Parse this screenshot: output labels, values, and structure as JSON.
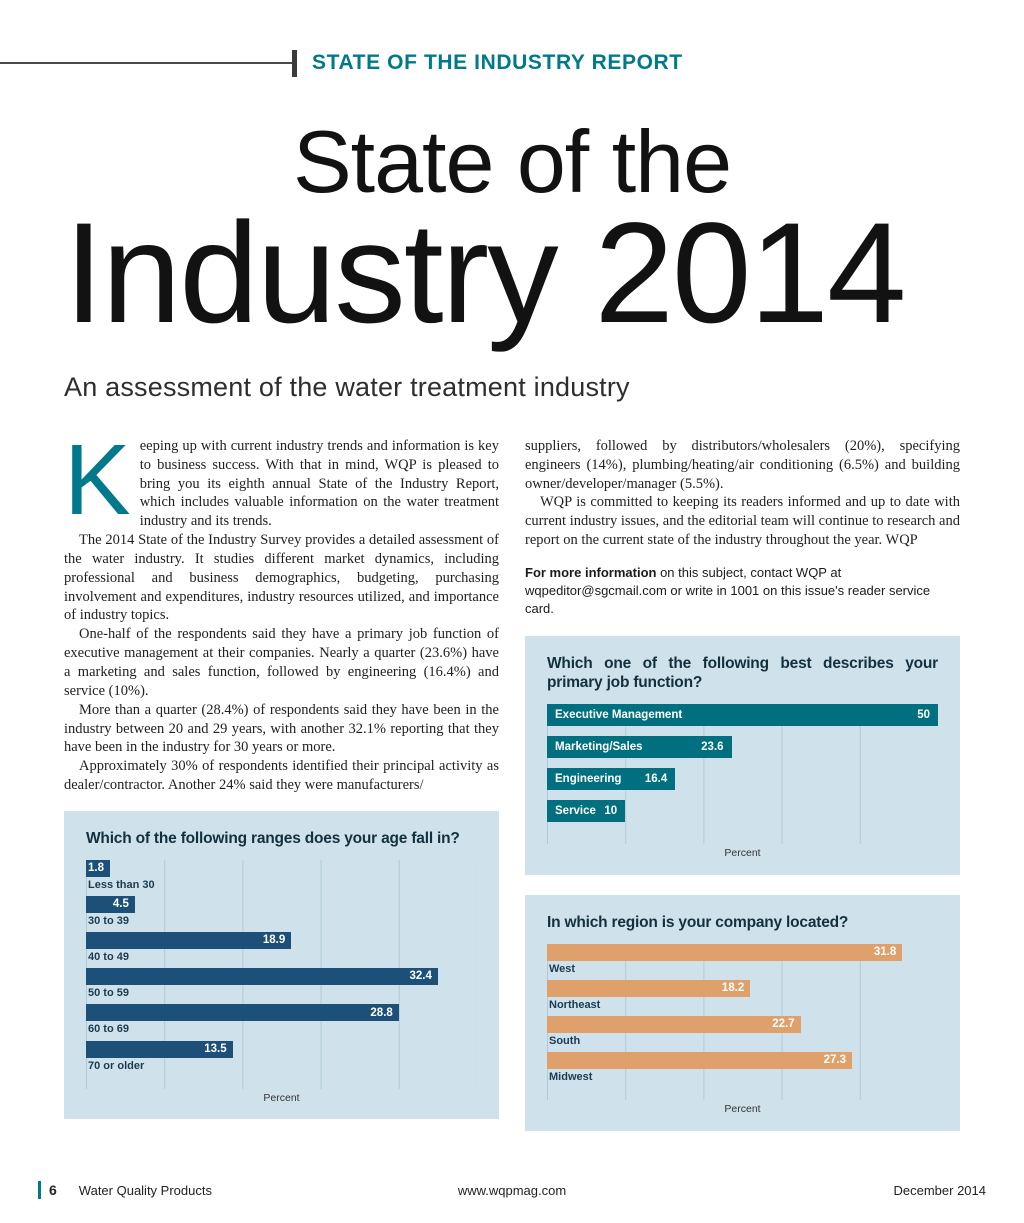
{
  "header": {
    "kicker": "STATE OF THE INDUSTRY REPORT"
  },
  "title": {
    "line1": "State of the",
    "line2": "Industry 2014",
    "subtitle": "An assessment of the water treatment industry"
  },
  "article": {
    "dropcap": "K",
    "left_paragraphs": [
      "eeping up with current industry trends and information is key to business success. With that in mind, WQP is pleased to bring you its eighth annual State of the Industry Report, which includes valuable information on the water treatment industry and its trends.",
      "The 2014 State of the Industry Survey provides a detailed assessment of the water industry. It studies different market dynamics, including professional and business demographics, budgeting, purchasing involvement and expenditures, industry resources utilized, and importance of industry topics.",
      "One-half of the respondents said they have a primary job function of executive management at their companies. Nearly a quarter (23.6%) have a marketing and sales function, followed by engineering (16.4%) and service (10%).",
      "More than a quarter (28.4%) of respondents said they have been in the industry between 20 and 29 years, with another 32.1% reporting that they have been in the industry for 30 years or more.",
      "Approximately 30% of respondents identified their principal activity as dealer/contractor. Another 24% said they were manufacturers/"
    ],
    "right_paragraphs": [
      "suppliers, followed by distributors/wholesalers (20%), specifying engineers (14%), plumbing/heating/air conditioning (6.5%) and building owner/developer/manager (5.5%).",
      "WQP is committed to keeping its readers informed and up to date with current industry issues, and the editorial team will continue to research and report on the current state of the industry throughout the year. WQP"
    ],
    "more_info": {
      "lead": "For more information",
      "text": " on this subject, contact WQP at wqpeditor@sgcmail.com or write in 1001 on this issue's reader service card."
    }
  },
  "footer": {
    "page_number": "6",
    "magazine": "Water Quality Products",
    "website": "www.wqpmag.com",
    "date": "December 2014"
  },
  "colors": {
    "accent_teal": "#00798C",
    "chart_background": "#CFE2EB",
    "bar_teal": "#007080",
    "bar_navy": "#1D5078",
    "bar_orange": "#DFA06B"
  },
  "chart_data": [
    {
      "type": "bar",
      "orientation": "horizontal",
      "title": "Which one of the following best describes your primary job function?",
      "categories": [
        "Executive Management",
        "Marketing/Sales",
        "Engineering",
        "Service"
      ],
      "values": [
        50,
        23.6,
        16.4,
        10
      ],
      "xlabel": "Percent",
      "xlim": [
        0,
        50
      ],
      "grid": true,
      "legend": false,
      "bar_color": "#007080",
      "label_style": "inside"
    },
    {
      "type": "bar",
      "orientation": "horizontal",
      "title": "Which of the following ranges does your age fall in?",
      "categories": [
        "Less than 30",
        "30 to 39",
        "40 to 49",
        "50 to 59",
        "60 to 69",
        "70 or older"
      ],
      "values": [
        1.8,
        4.5,
        18.9,
        32.4,
        28.8,
        13.5
      ],
      "xlabel": "Percent",
      "xlim": [
        0,
        36
      ],
      "grid": true,
      "legend": false,
      "bar_color": "#1D5078",
      "label_style": "below"
    },
    {
      "type": "bar",
      "orientation": "horizontal",
      "title": "In which region is your company located?",
      "categories": [
        "West",
        "Northeast",
        "South",
        "Midwest"
      ],
      "values": [
        31.8,
        18.2,
        22.7,
        27.3
      ],
      "xlabel": "Percent",
      "xlim": [
        0,
        35
      ],
      "grid": true,
      "legend": false,
      "bar_color": "#DFA06B",
      "label_style": "below"
    }
  ]
}
